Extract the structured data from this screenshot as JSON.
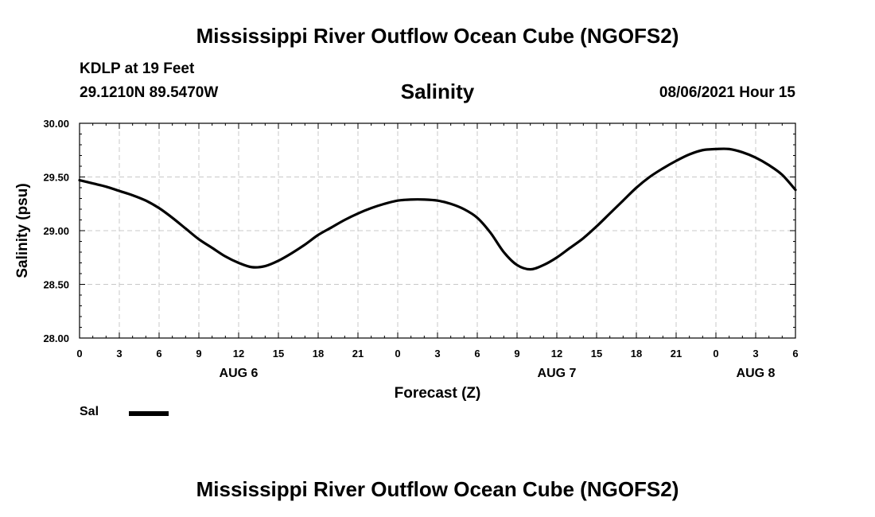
{
  "header": {
    "main_title": "Mississippi River Outflow Ocean Cube (NGOFS2)",
    "station": "KDLP at 19 Feet",
    "coords": "29.1210N  89.5470W",
    "chart_title": "Salinity",
    "datestamp": "08/06/2021 Hour 15"
  },
  "footer": {
    "title": "Mississippi River Outflow Ocean Cube (NGOFS2)"
  },
  "legend": {
    "label": "Sal",
    "color": "#000000"
  },
  "chart_data": {
    "type": "line",
    "title": "Salinity",
    "xlabel": "Forecast (Z)",
    "ylabel": "Salinity (psu)",
    "xlim": [
      0,
      54
    ],
    "ylim": [
      28.0,
      30.0
    ],
    "grid": true,
    "legend_position": "bottom-left",
    "x_tick_labels": [
      "0",
      "3",
      "6",
      "9",
      "12",
      "15",
      "18",
      "21",
      "0",
      "3",
      "6",
      "9",
      "12",
      "15",
      "18",
      "21",
      "0",
      "3",
      "6"
    ],
    "y_tick_labels": [
      "28.00",
      "28.50",
      "29.00",
      "29.50",
      "30.00"
    ],
    "date_labels": [
      {
        "x": 12,
        "label": "AUG 6"
      },
      {
        "x": 36,
        "label": "AUG 7"
      },
      {
        "x": 51,
        "label": "AUG 8"
      }
    ],
    "series": [
      {
        "name": "Sal",
        "x": [
          0,
          1,
          2,
          3,
          4,
          5,
          6,
          7,
          8,
          9,
          10,
          11,
          12,
          13,
          14,
          15,
          16,
          17,
          18,
          19,
          20,
          21,
          22,
          23,
          24,
          25,
          26,
          27,
          28,
          29,
          30,
          31,
          32,
          33,
          34,
          35,
          36,
          37,
          38,
          39,
          40,
          41,
          42,
          43,
          44,
          45,
          46,
          47,
          48,
          49,
          50,
          51,
          52,
          53,
          54
        ],
        "values": [
          29.47,
          29.44,
          29.41,
          29.37,
          29.33,
          29.28,
          29.21,
          29.12,
          29.02,
          28.92,
          28.84,
          28.76,
          28.7,
          28.66,
          28.67,
          28.72,
          28.79,
          28.87,
          28.96,
          29.03,
          29.1,
          29.16,
          29.21,
          29.25,
          29.28,
          29.29,
          29.29,
          29.28,
          29.25,
          29.2,
          29.12,
          28.98,
          28.8,
          28.68,
          28.64,
          28.68,
          28.75,
          28.84,
          28.93,
          29.04,
          29.16,
          29.28,
          29.4,
          29.5,
          29.58,
          29.65,
          29.71,
          29.75,
          29.76,
          29.76,
          29.73,
          29.68,
          29.61,
          29.52,
          29.38
        ]
      }
    ]
  }
}
